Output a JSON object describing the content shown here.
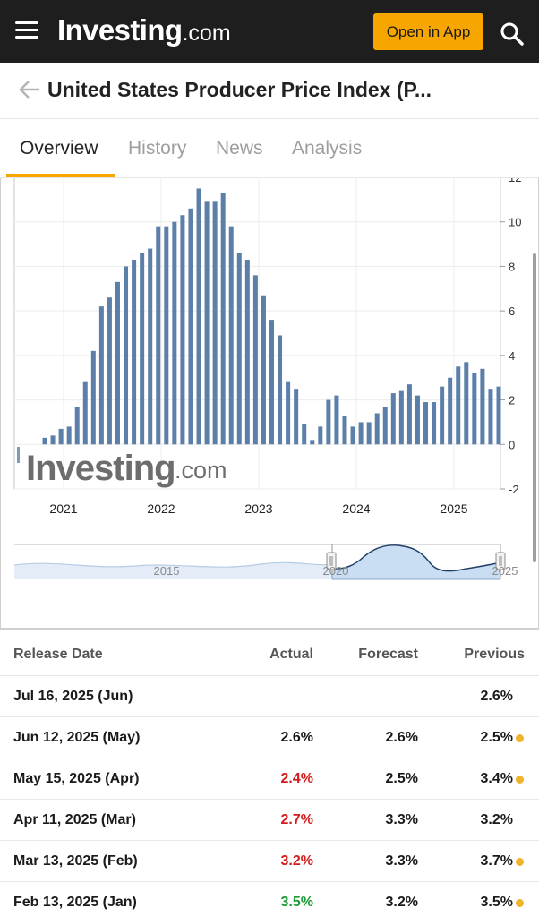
{
  "header": {
    "logo_text": "Investing",
    "logo_suffix": ".com",
    "open_app_label": "Open in App"
  },
  "page": {
    "title": "United States Producer Price Index (P..."
  },
  "tabs": [
    {
      "label": "Overview",
      "active": true
    },
    {
      "label": "History",
      "active": false
    },
    {
      "label": "News",
      "active": false
    },
    {
      "label": "Analysis",
      "active": false
    }
  ],
  "chart_data": {
    "type": "bar",
    "title": "",
    "xlabel": "",
    "ylabel": "",
    "ylim": [
      -2,
      12
    ],
    "y_ticks": [
      "12",
      "10",
      "8",
      "6",
      "4",
      "2",
      "0",
      "-2"
    ],
    "x_ticks": [
      "2021",
      "2022",
      "2023",
      "2024",
      "2025"
    ],
    "bar_color": "#5b7fa8",
    "watermark": {
      "text": "Investing",
      "suffix": ".com"
    },
    "series": [
      {
        "values": [
          0.3,
          0.4,
          0.7,
          0.8,
          1.7,
          2.8,
          4.2,
          6.2,
          6.6,
          7.3,
          8.0,
          8.3,
          8.6,
          8.8,
          9.8,
          9.8,
          10.0,
          10.3,
          10.6,
          11.5,
          10.9,
          10.9,
          11.3,
          9.8,
          8.6,
          8.3,
          7.6,
          6.7,
          5.6,
          4.9,
          2.8,
          2.5,
          0.9,
          0.2,
          0.8,
          2.0,
          2.2,
          1.3,
          0.8,
          1.0,
          1.0,
          1.4,
          1.7,
          2.3,
          2.4,
          2.7,
          2.2,
          1.9,
          1.9,
          2.6,
          3.0,
          3.5,
          3.7,
          3.2,
          3.4,
          2.5,
          2.6
        ]
      }
    ],
    "navigator": {
      "labels": [
        "2015",
        "2020",
        "2025"
      ]
    }
  },
  "table": {
    "headers": {
      "date": "Release Date",
      "actual": "Actual",
      "forecast": "Forecast",
      "previous": "Previous"
    },
    "rows": [
      {
        "date": "Jul 16, 2025 (Jun)",
        "actual": "",
        "forecast": "",
        "previous": "2.6%",
        "actual_color": "",
        "dot": false
      },
      {
        "date": "Jun 12, 2025 (May)",
        "actual": "2.6%",
        "forecast": "2.6%",
        "previous": "2.5%",
        "actual_color": "",
        "dot": true
      },
      {
        "date": "May 15, 2025 (Apr)",
        "actual": "2.4%",
        "forecast": "2.5%",
        "previous": "3.4%",
        "actual_color": "red",
        "dot": true
      },
      {
        "date": "Apr 11, 2025 (Mar)",
        "actual": "2.7%",
        "forecast": "3.3%",
        "previous": "3.2%",
        "actual_color": "red",
        "dot": false
      },
      {
        "date": "Mar 13, 2025 (Feb)",
        "actual": "3.2%",
        "forecast": "3.3%",
        "previous": "3.7%",
        "actual_color": "red",
        "dot": true
      },
      {
        "date": "Feb 13, 2025 (Jan)",
        "actual": "3.5%",
        "forecast": "3.2%",
        "previous": "3.5%",
        "actual_color": "green",
        "dot": true
      }
    ]
  }
}
